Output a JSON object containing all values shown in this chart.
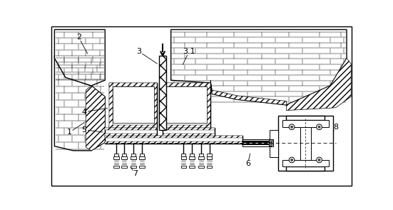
{
  "bg": "#ffffff",
  "lc": "#000000",
  "gray": "#c0c0c0"
}
